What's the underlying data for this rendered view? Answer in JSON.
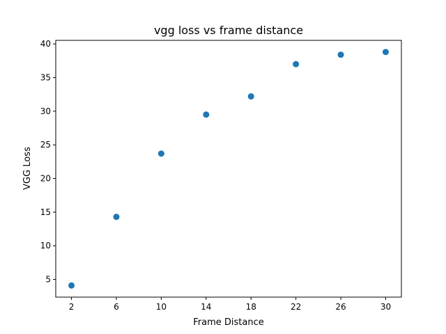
{
  "chart_data": {
    "type": "scatter",
    "title": "vgg loss vs frame distance",
    "xlabel": "Frame Distance",
    "ylabel": "VGG Loss",
    "x": [
      2,
      6,
      10,
      14,
      18,
      22,
      26,
      30
    ],
    "y": [
      4.1,
      14.3,
      23.7,
      29.5,
      32.2,
      37.0,
      38.4,
      38.8
    ],
    "xticks": [
      2,
      6,
      10,
      14,
      18,
      22,
      26,
      30
    ],
    "yticks": [
      5,
      10,
      15,
      20,
      25,
      30,
      35,
      40
    ],
    "xlim": [
      0.6,
      31.4
    ],
    "ylim": [
      2.37,
      40.53
    ],
    "marker_color": "#1f77b4",
    "grid": false,
    "legend": "none"
  }
}
